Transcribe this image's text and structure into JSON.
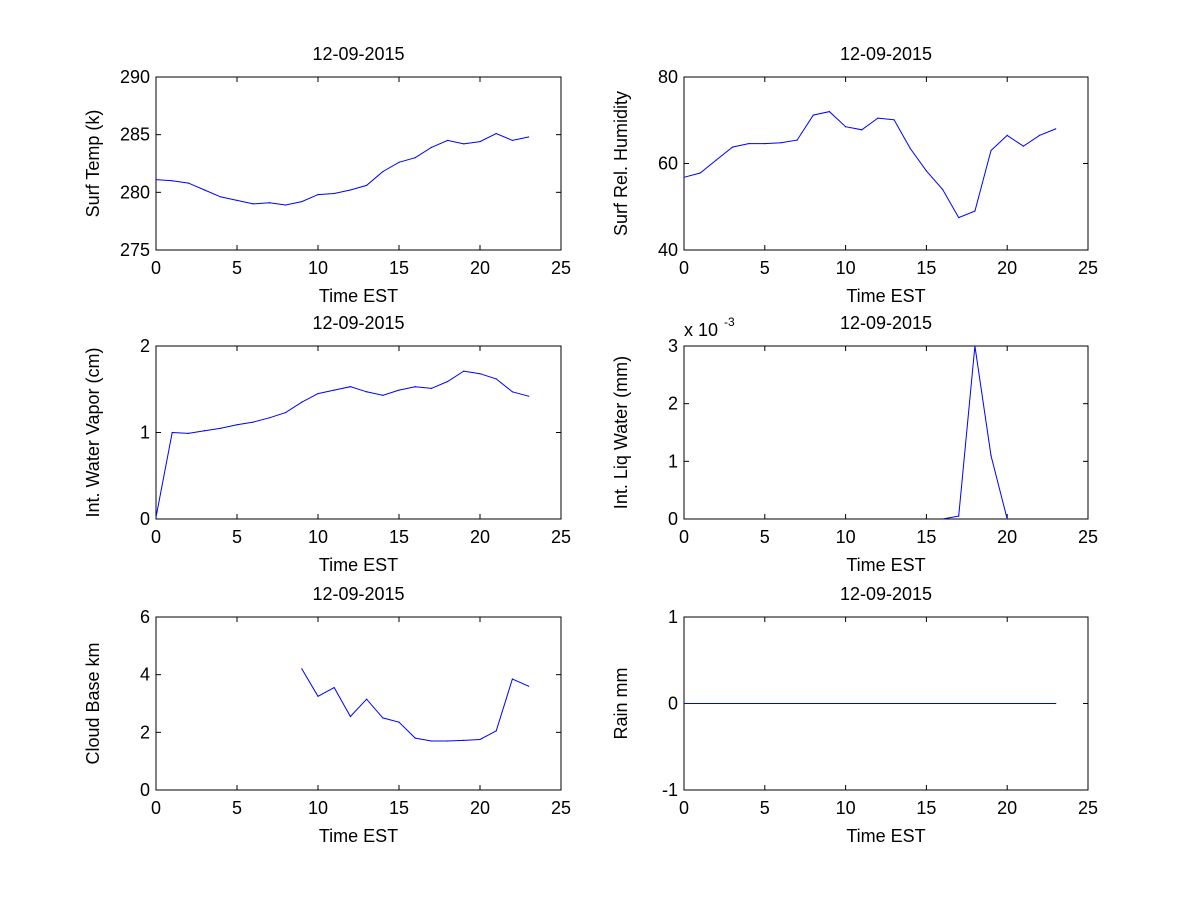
{
  "chart_data": [
    {
      "type": "line",
      "title": "12-09-2015",
      "xlabel": "Time EST",
      "ylabel": "Surf Temp (k)",
      "xlim": [
        0,
        25
      ],
      "ylim": [
        275,
        290
      ],
      "xticks": [
        "0",
        "5",
        "10",
        "15",
        "20",
        "25"
      ],
      "yticks": [
        "275",
        "280",
        "285",
        "290"
      ],
      "grid": false,
      "color": "#0000ff",
      "x": [
        0,
        1,
        2,
        3,
        4,
        5,
        6,
        7,
        8,
        9,
        10,
        11,
        12,
        13,
        14,
        15,
        16,
        17,
        18,
        19,
        20,
        21,
        22,
        23
      ],
      "y": [
        281.1,
        281.0,
        280.8,
        280.2,
        279.6,
        279.3,
        279.0,
        279.1,
        278.9,
        279.2,
        279.8,
        279.9,
        280.2,
        280.6,
        281.8,
        282.6,
        283.0,
        283.9,
        284.5,
        284.2,
        284.4,
        285.1,
        284.5,
        284.8
      ]
    },
    {
      "type": "line",
      "title": "12-09-2015",
      "xlabel": "Time EST",
      "ylabel": "Surf Rel. Humidity",
      "xlim": [
        0,
        25
      ],
      "ylim": [
        40,
        80
      ],
      "xticks": [
        "0",
        "5",
        "10",
        "15",
        "20",
        "25"
      ],
      "yticks": [
        "40",
        "60",
        "80"
      ],
      "grid": false,
      "color": "#0000ff",
      "x": [
        0,
        1,
        2,
        3,
        4,
        5,
        6,
        7,
        8,
        9,
        10,
        11,
        12,
        13,
        14,
        15,
        16,
        17,
        18,
        19,
        20,
        21,
        22,
        23
      ],
      "y": [
        56.8,
        57.8,
        60.8,
        63.8,
        64.6,
        64.6,
        64.8,
        65.4,
        71.2,
        72.0,
        68.5,
        67.8,
        70.5,
        70.1,
        63.5,
        58.3,
        54.0,
        47.5,
        49.0,
        63.0,
        66.5,
        64.0,
        66.5,
        68.0
      ]
    },
    {
      "type": "line",
      "title": "12-09-2015",
      "xlabel": "Time EST",
      "ylabel": "Int. Water Vapor (cm)",
      "xlim": [
        0,
        25
      ],
      "ylim": [
        0,
        2
      ],
      "xticks": [
        "0",
        "5",
        "10",
        "15",
        "20",
        "25"
      ],
      "yticks": [
        "0",
        "1",
        "2"
      ],
      "grid": false,
      "color": "#0000ff",
      "x": [
        0,
        1,
        2,
        3,
        4,
        5,
        6,
        7,
        8,
        9,
        10,
        11,
        12,
        13,
        14,
        15,
        16,
        17,
        18,
        19,
        20,
        21,
        22,
        23
      ],
      "y": [
        0.02,
        1.0,
        0.99,
        1.02,
        1.05,
        1.09,
        1.12,
        1.17,
        1.23,
        1.35,
        1.45,
        1.49,
        1.53,
        1.47,
        1.43,
        1.49,
        1.53,
        1.51,
        1.59,
        1.71,
        1.68,
        1.62,
        1.47,
        1.42
      ]
    },
    {
      "type": "line",
      "title": "12-09-2015",
      "xlabel": "Time EST",
      "ylabel": "Int. Liq Water (mm)",
      "exponent_label": "x 10",
      "exponent_power": "-3",
      "xlim": [
        0,
        25
      ],
      "ylim": [
        0,
        3
      ],
      "xticks": [
        "0",
        "5",
        "10",
        "15",
        "20",
        "25"
      ],
      "yticks": [
        "0",
        "1",
        "2",
        "3"
      ],
      "grid": false,
      "color": "#0000ff",
      "x": [
        16,
        17,
        18,
        19,
        20
      ],
      "y": [
        0.0,
        0.05,
        3.0,
        1.1,
        0.0
      ]
    },
    {
      "type": "line",
      "title": "12-09-2015",
      "xlabel": "Time EST",
      "ylabel": "Cloud Base km",
      "xlim": [
        0,
        25
      ],
      "ylim": [
        0,
        6
      ],
      "xticks": [
        "0",
        "5",
        "10",
        "15",
        "20",
        "25"
      ],
      "yticks": [
        "0",
        "2",
        "4",
        "6"
      ],
      "grid": false,
      "color": "#0000ff",
      "x": [
        9,
        10,
        11,
        12,
        13,
        14,
        15,
        16,
        17,
        18,
        19,
        20,
        21,
        22,
        23
      ],
      "y": [
        4.2,
        3.25,
        3.55,
        2.55,
        3.15,
        2.5,
        2.35,
        1.8,
        1.7,
        1.7,
        1.72,
        1.75,
        2.05,
        3.85,
        3.6
      ]
    },
    {
      "type": "line",
      "title": "12-09-2015",
      "xlabel": "Time EST",
      "ylabel": "Rain mm",
      "xlim": [
        0,
        25
      ],
      "ylim": [
        -1,
        1
      ],
      "xticks": [
        "0",
        "5",
        "10",
        "15",
        "20",
        "25"
      ],
      "yticks": [
        "-1",
        "0",
        "1"
      ],
      "grid": false,
      "color": "#0000ff",
      "x": [
        0,
        23
      ],
      "y": [
        0,
        0
      ]
    }
  ]
}
